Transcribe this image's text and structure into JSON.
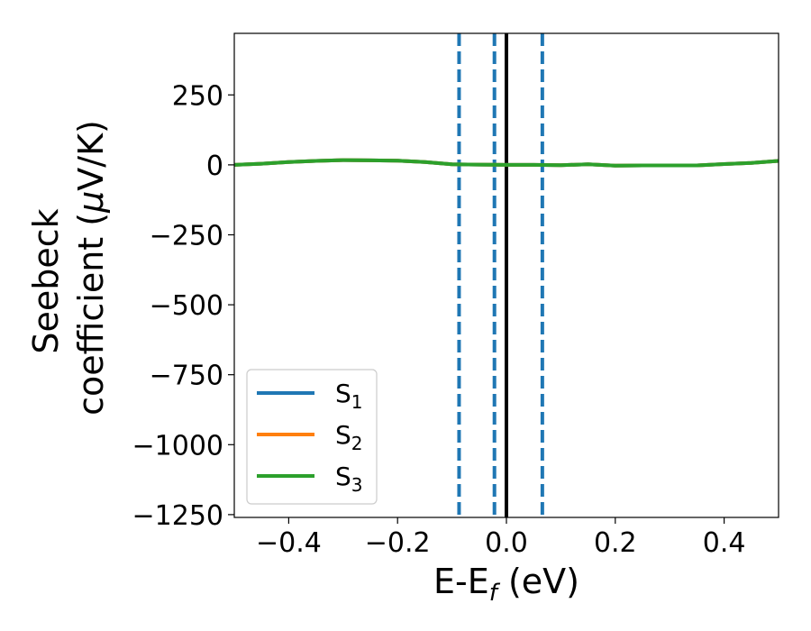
{
  "chart_data": {
    "type": "line",
    "xlabel": "E-E",
    "xlabel_sub": "f",
    "xlabel_unit": " (eV)",
    "ylabel_line1": "Seebeck",
    "ylabel_line2": "coefficient  (",
    "ylabel_mu": "μ",
    "ylabel_unit": "V/K)",
    "xlim": [
      -0.5,
      0.5
    ],
    "ylim": [
      -1260,
      470
    ],
    "x_ticks": [
      -0.4,
      -0.2,
      0.0,
      0.2,
      0.4
    ],
    "x_tick_labels": [
      "−0.4",
      "−0.2",
      "0.0",
      "0.2",
      "0.4"
    ],
    "y_ticks": [
      250,
      0,
      -250,
      -500,
      -750,
      -1000,
      -1250
    ],
    "y_tick_labels": [
      "250",
      "0",
      "−250",
      "−500",
      "−750",
      "−1000",
      "−1250"
    ],
    "legend_position": "lower-left",
    "series": [
      {
        "name": "S",
        "sub": "1",
        "color": "#1f77b4",
        "x": [
          -0.5,
          -0.45,
          -0.4,
          -0.35,
          -0.3,
          -0.25,
          -0.2,
          -0.15,
          -0.1,
          -0.05,
          0.0,
          0.05,
          0.1,
          0.15,
          0.2,
          0.25,
          0.3,
          0.35,
          0.4,
          0.45,
          0.5
        ],
        "y": [
          0,
          4,
          10,
          14,
          17,
          16,
          15,
          10,
          2,
          1,
          0,
          0,
          -1,
          2,
          -3,
          -2,
          -2,
          -2,
          3,
          7,
          14
        ]
      },
      {
        "name": "S",
        "sub": "2",
        "color": "#ff7f0e",
        "x": [
          -0.5,
          -0.45,
          -0.4,
          -0.35,
          -0.3,
          -0.25,
          -0.2,
          -0.15,
          -0.1,
          -0.05,
          0.0,
          0.05,
          0.1,
          0.15,
          0.2,
          0.25,
          0.3,
          0.35,
          0.4,
          0.45,
          0.5
        ],
        "y": [
          0,
          4,
          10,
          14,
          17,
          16,
          15,
          10,
          2,
          1,
          0,
          0,
          -1,
          2,
          -3,
          -2,
          -2,
          -2,
          3,
          7,
          14
        ]
      },
      {
        "name": "S",
        "sub": "3",
        "color": "#2ca02c",
        "x": [
          -0.5,
          -0.45,
          -0.4,
          -0.35,
          -0.3,
          -0.25,
          -0.2,
          -0.15,
          -0.1,
          -0.05,
          0.0,
          0.05,
          0.1,
          0.15,
          0.2,
          0.25,
          0.3,
          0.35,
          0.4,
          0.45,
          0.5
        ],
        "y": [
          0,
          4,
          10,
          14,
          17,
          16,
          15,
          10,
          2,
          1,
          0,
          0,
          -1,
          2,
          -3,
          -2,
          -2,
          -2,
          3,
          7,
          14
        ]
      }
    ],
    "vertical_lines": [
      {
        "x": -0.087,
        "style": "dashed",
        "color": "#1f77b4"
      },
      {
        "x": -0.022,
        "style": "dashed",
        "color": "#1f77b4"
      },
      {
        "x": 0.0,
        "style": "solid",
        "color": "#000000"
      },
      {
        "x": 0.066,
        "style": "dashed",
        "color": "#1f77b4"
      }
    ]
  }
}
